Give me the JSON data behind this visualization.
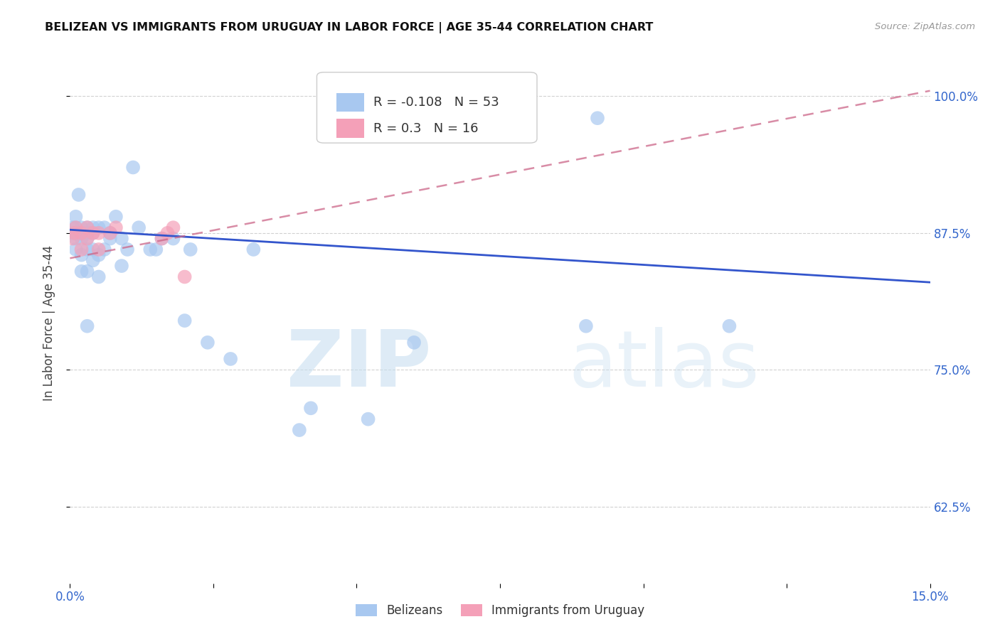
{
  "title": "BELIZEAN VS IMMIGRANTS FROM URUGUAY IN LABOR FORCE | AGE 35-44 CORRELATION CHART",
  "source": "Source: ZipAtlas.com",
  "ylabel_label": "In Labor Force | Age 35-44",
  "xlim": [
    0.0,
    0.15
  ],
  "ylim": [
    0.555,
    1.03
  ],
  "xticks": [
    0.0,
    0.025,
    0.05,
    0.075,
    0.1,
    0.125,
    0.15
  ],
  "xticklabels": [
    "0.0%",
    "",
    "",
    "",
    "",
    "",
    "15.0%"
  ],
  "yticks": [
    0.625,
    0.75,
    0.875,
    1.0
  ],
  "yticklabels": [
    "62.5%",
    "75.0%",
    "87.5%",
    "100.0%"
  ],
  "legend_blue_label": "Belizeans",
  "legend_pink_label": "Immigrants from Uruguay",
  "R_blue": -0.108,
  "N_blue": 53,
  "R_pink": 0.3,
  "N_pink": 16,
  "blue_color": "#a8c8f0",
  "pink_color": "#f4a0b8",
  "blue_line_color": "#3355cc",
  "pink_line_color": "#cc6688",
  "blue_x": [
    0.0005,
    0.0005,
    0.0008,
    0.001,
    0.001,
    0.001,
    0.001,
    0.0012,
    0.0015,
    0.0018,
    0.002,
    0.002,
    0.002,
    0.002,
    0.003,
    0.003,
    0.003,
    0.003,
    0.003,
    0.003,
    0.004,
    0.004,
    0.004,
    0.004,
    0.005,
    0.005,
    0.005,
    0.006,
    0.006,
    0.007,
    0.007,
    0.008,
    0.009,
    0.009,
    0.01,
    0.011,
    0.012,
    0.014,
    0.015,
    0.016,
    0.018,
    0.02,
    0.021,
    0.024,
    0.028,
    0.032,
    0.04,
    0.042,
    0.052,
    0.06,
    0.09,
    0.092,
    0.115
  ],
  "blue_y": [
    0.875,
    0.88,
    0.875,
    0.86,
    0.87,
    0.88,
    0.89,
    0.875,
    0.91,
    0.875,
    0.84,
    0.855,
    0.87,
    0.88,
    0.79,
    0.84,
    0.86,
    0.87,
    0.875,
    0.88,
    0.85,
    0.86,
    0.875,
    0.88,
    0.835,
    0.855,
    0.88,
    0.86,
    0.88,
    0.87,
    0.875,
    0.89,
    0.845,
    0.87,
    0.86,
    0.935,
    0.88,
    0.86,
    0.86,
    0.87,
    0.87,
    0.795,
    0.86,
    0.775,
    0.76,
    0.86,
    0.695,
    0.715,
    0.705,
    0.775,
    0.79,
    0.98,
    0.79
  ],
  "pink_x": [
    0.0005,
    0.0008,
    0.001,
    0.002,
    0.002,
    0.003,
    0.003,
    0.004,
    0.005,
    0.005,
    0.007,
    0.008,
    0.016,
    0.017,
    0.018,
    0.02
  ],
  "pink_y": [
    0.87,
    0.875,
    0.88,
    0.86,
    0.875,
    0.87,
    0.88,
    0.875,
    0.86,
    0.875,
    0.875,
    0.88,
    0.87,
    0.875,
    0.88,
    0.835
  ],
  "blue_line_x": [
    0.0,
    0.15
  ],
  "blue_line_y": [
    0.878,
    0.83
  ],
  "pink_line_x": [
    0.0,
    0.15
  ],
  "pink_line_y": [
    0.852,
    1.005
  ]
}
